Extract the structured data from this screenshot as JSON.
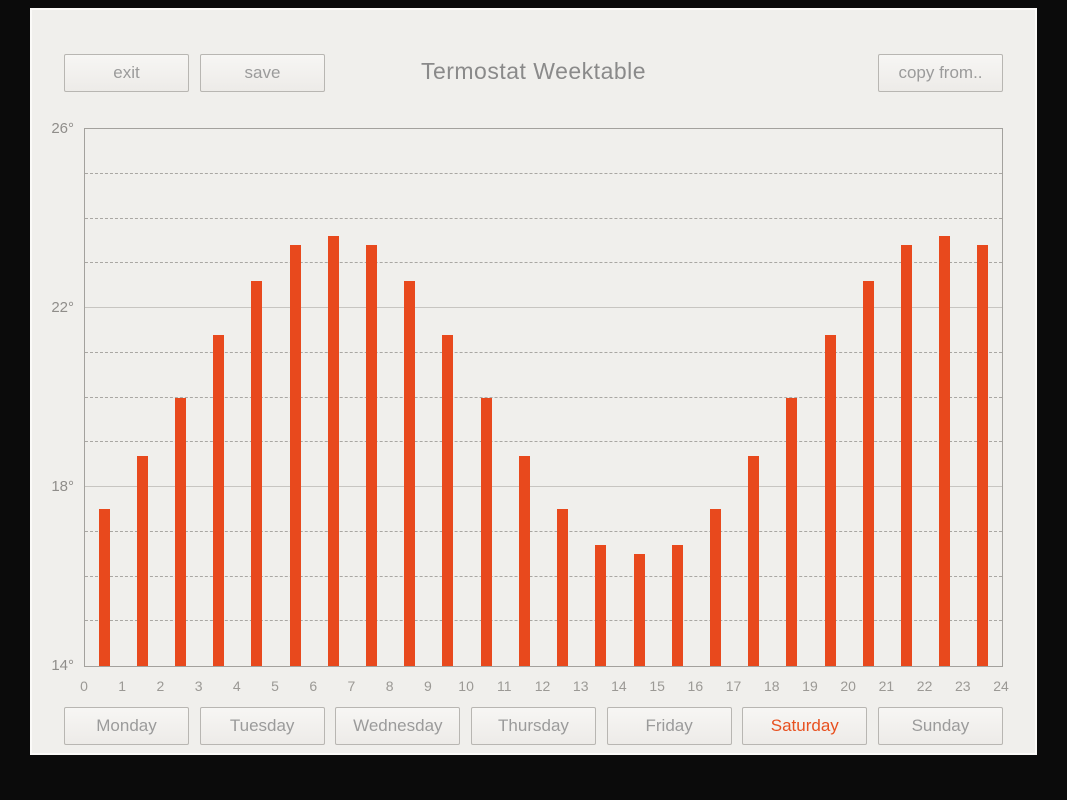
{
  "header": {
    "exit_label": "exit",
    "save_label": "save",
    "title": "Termostat Weektable",
    "copy_from_label": "copy from.."
  },
  "days": [
    {
      "label": "Monday",
      "active": false
    },
    {
      "label": "Tuesday",
      "active": false
    },
    {
      "label": "Wednesday",
      "active": false
    },
    {
      "label": "Thursday",
      "active": false
    },
    {
      "label": "Friday",
      "active": false
    },
    {
      "label": "Saturday",
      "active": true
    },
    {
      "label": "Sunday",
      "active": false
    }
  ],
  "chart_data": {
    "type": "bar",
    "x_unit": "hour of day",
    "hours": [
      0,
      1,
      2,
      3,
      4,
      5,
      6,
      7,
      8,
      9,
      10,
      11,
      12,
      13,
      14,
      15,
      16,
      17,
      18,
      19,
      20,
      21,
      22,
      23
    ],
    "values": [
      17.5,
      18.7,
      20.0,
      21.4,
      22.6,
      23.4,
      23.6,
      23.4,
      22.6,
      21.4,
      20.0,
      18.7,
      17.5,
      16.7,
      16.5,
      16.7,
      17.5,
      18.7,
      20.0,
      21.4,
      22.6,
      23.4,
      23.6,
      23.4
    ],
    "title": "",
    "xlabel": "",
    "ylabel": "",
    "ylim": [
      14,
      26
    ],
    "yticks": [
      14,
      18,
      22,
      26
    ],
    "ytick_labels": [
      "14°",
      "18°",
      "22°",
      "26°"
    ],
    "xtick_labels": [
      "0",
      "1",
      "2",
      "3",
      "4",
      "5",
      "6",
      "7",
      "8",
      "9",
      "10",
      "11",
      "12",
      "13",
      "14",
      "15",
      "16",
      "17",
      "18",
      "19",
      "20",
      "21",
      "22",
      "23",
      "24"
    ],
    "solid_gridlines": [
      18,
      22
    ],
    "dashed_gridlines": [
      15,
      16,
      17,
      19,
      20,
      21,
      23,
      24,
      25
    ],
    "grid": true,
    "legend": false,
    "bar_color": "#e8491d"
  },
  "colors": {
    "accent": "#e8501f",
    "bar": "#e8491d",
    "panel": "#f0efec",
    "background": "#0b0b0b"
  }
}
